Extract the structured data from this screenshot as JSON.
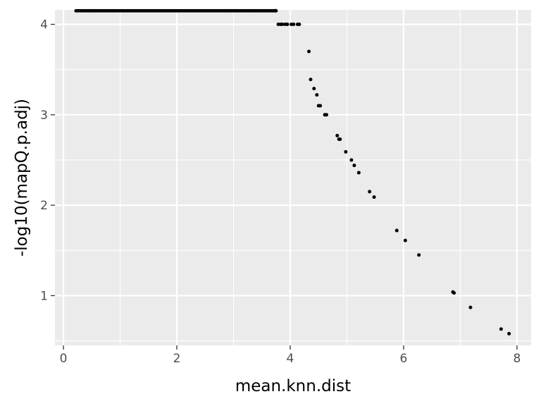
{
  "chart_data": {
    "type": "scatter",
    "title": "",
    "xlabel": "mean.knn.dist",
    "ylabel": "-log10(mapQ.p.adj)",
    "xlim": [
      -0.15,
      8.25
    ],
    "ylim": [
      0.45,
      4.16
    ],
    "x_ticks": [
      0,
      2,
      4,
      6,
      8
    ],
    "y_ticks": [
      1,
      2,
      3,
      4
    ],
    "x_tick_labels": [
      "0",
      "2",
      "4",
      "6",
      "8"
    ],
    "y_tick_labels": [
      "1",
      "2",
      "3",
      "4"
    ],
    "grid": true,
    "legend": "none",
    "colors": {
      "panel": "#ebebeb",
      "grid": "#ffffff",
      "point": "#000000",
      "tick_text": "#4d4d4d",
      "tick_mark": "#333333"
    },
    "dense_band": {
      "y": 4.15,
      "x_start": 0.22,
      "x_end": 3.72,
      "step": 0.02
    },
    "points": [
      {
        "x": 3.75,
        "y": 4.15
      },
      {
        "x": 3.73,
        "y": 4.15
      },
      {
        "x": 3.79,
        "y": 4.0
      },
      {
        "x": 3.83,
        "y": 4.0
      },
      {
        "x": 3.86,
        "y": 4.0
      },
      {
        "x": 3.91,
        "y": 4.0
      },
      {
        "x": 3.95,
        "y": 4.0
      },
      {
        "x": 4.02,
        "y": 4.0
      },
      {
        "x": 4.06,
        "y": 4.0
      },
      {
        "x": 4.13,
        "y": 4.0
      },
      {
        "x": 4.16,
        "y": 4.0
      },
      {
        "x": 4.33,
        "y": 3.7
      },
      {
        "x": 4.36,
        "y": 3.39
      },
      {
        "x": 4.42,
        "y": 3.29
      },
      {
        "x": 4.47,
        "y": 3.22
      },
      {
        "x": 4.5,
        "y": 3.1
      },
      {
        "x": 4.53,
        "y": 3.1
      },
      {
        "x": 4.61,
        "y": 3.0
      },
      {
        "x": 4.64,
        "y": 3.0
      },
      {
        "x": 4.83,
        "y": 2.77
      },
      {
        "x": 4.86,
        "y": 2.73
      },
      {
        "x": 4.88,
        "y": 2.73
      },
      {
        "x": 4.98,
        "y": 2.59
      },
      {
        "x": 5.08,
        "y": 2.5
      },
      {
        "x": 5.13,
        "y": 2.44
      },
      {
        "x": 5.21,
        "y": 2.36
      },
      {
        "x": 5.4,
        "y": 2.15
      },
      {
        "x": 5.48,
        "y": 2.09
      },
      {
        "x": 5.88,
        "y": 1.72
      },
      {
        "x": 6.03,
        "y": 1.61
      },
      {
        "x": 6.27,
        "y": 1.45
      },
      {
        "x": 6.87,
        "y": 1.04
      },
      {
        "x": 6.89,
        "y": 1.03
      },
      {
        "x": 7.18,
        "y": 0.87
      },
      {
        "x": 7.72,
        "y": 0.63
      },
      {
        "x": 7.86,
        "y": 0.58
      }
    ]
  }
}
